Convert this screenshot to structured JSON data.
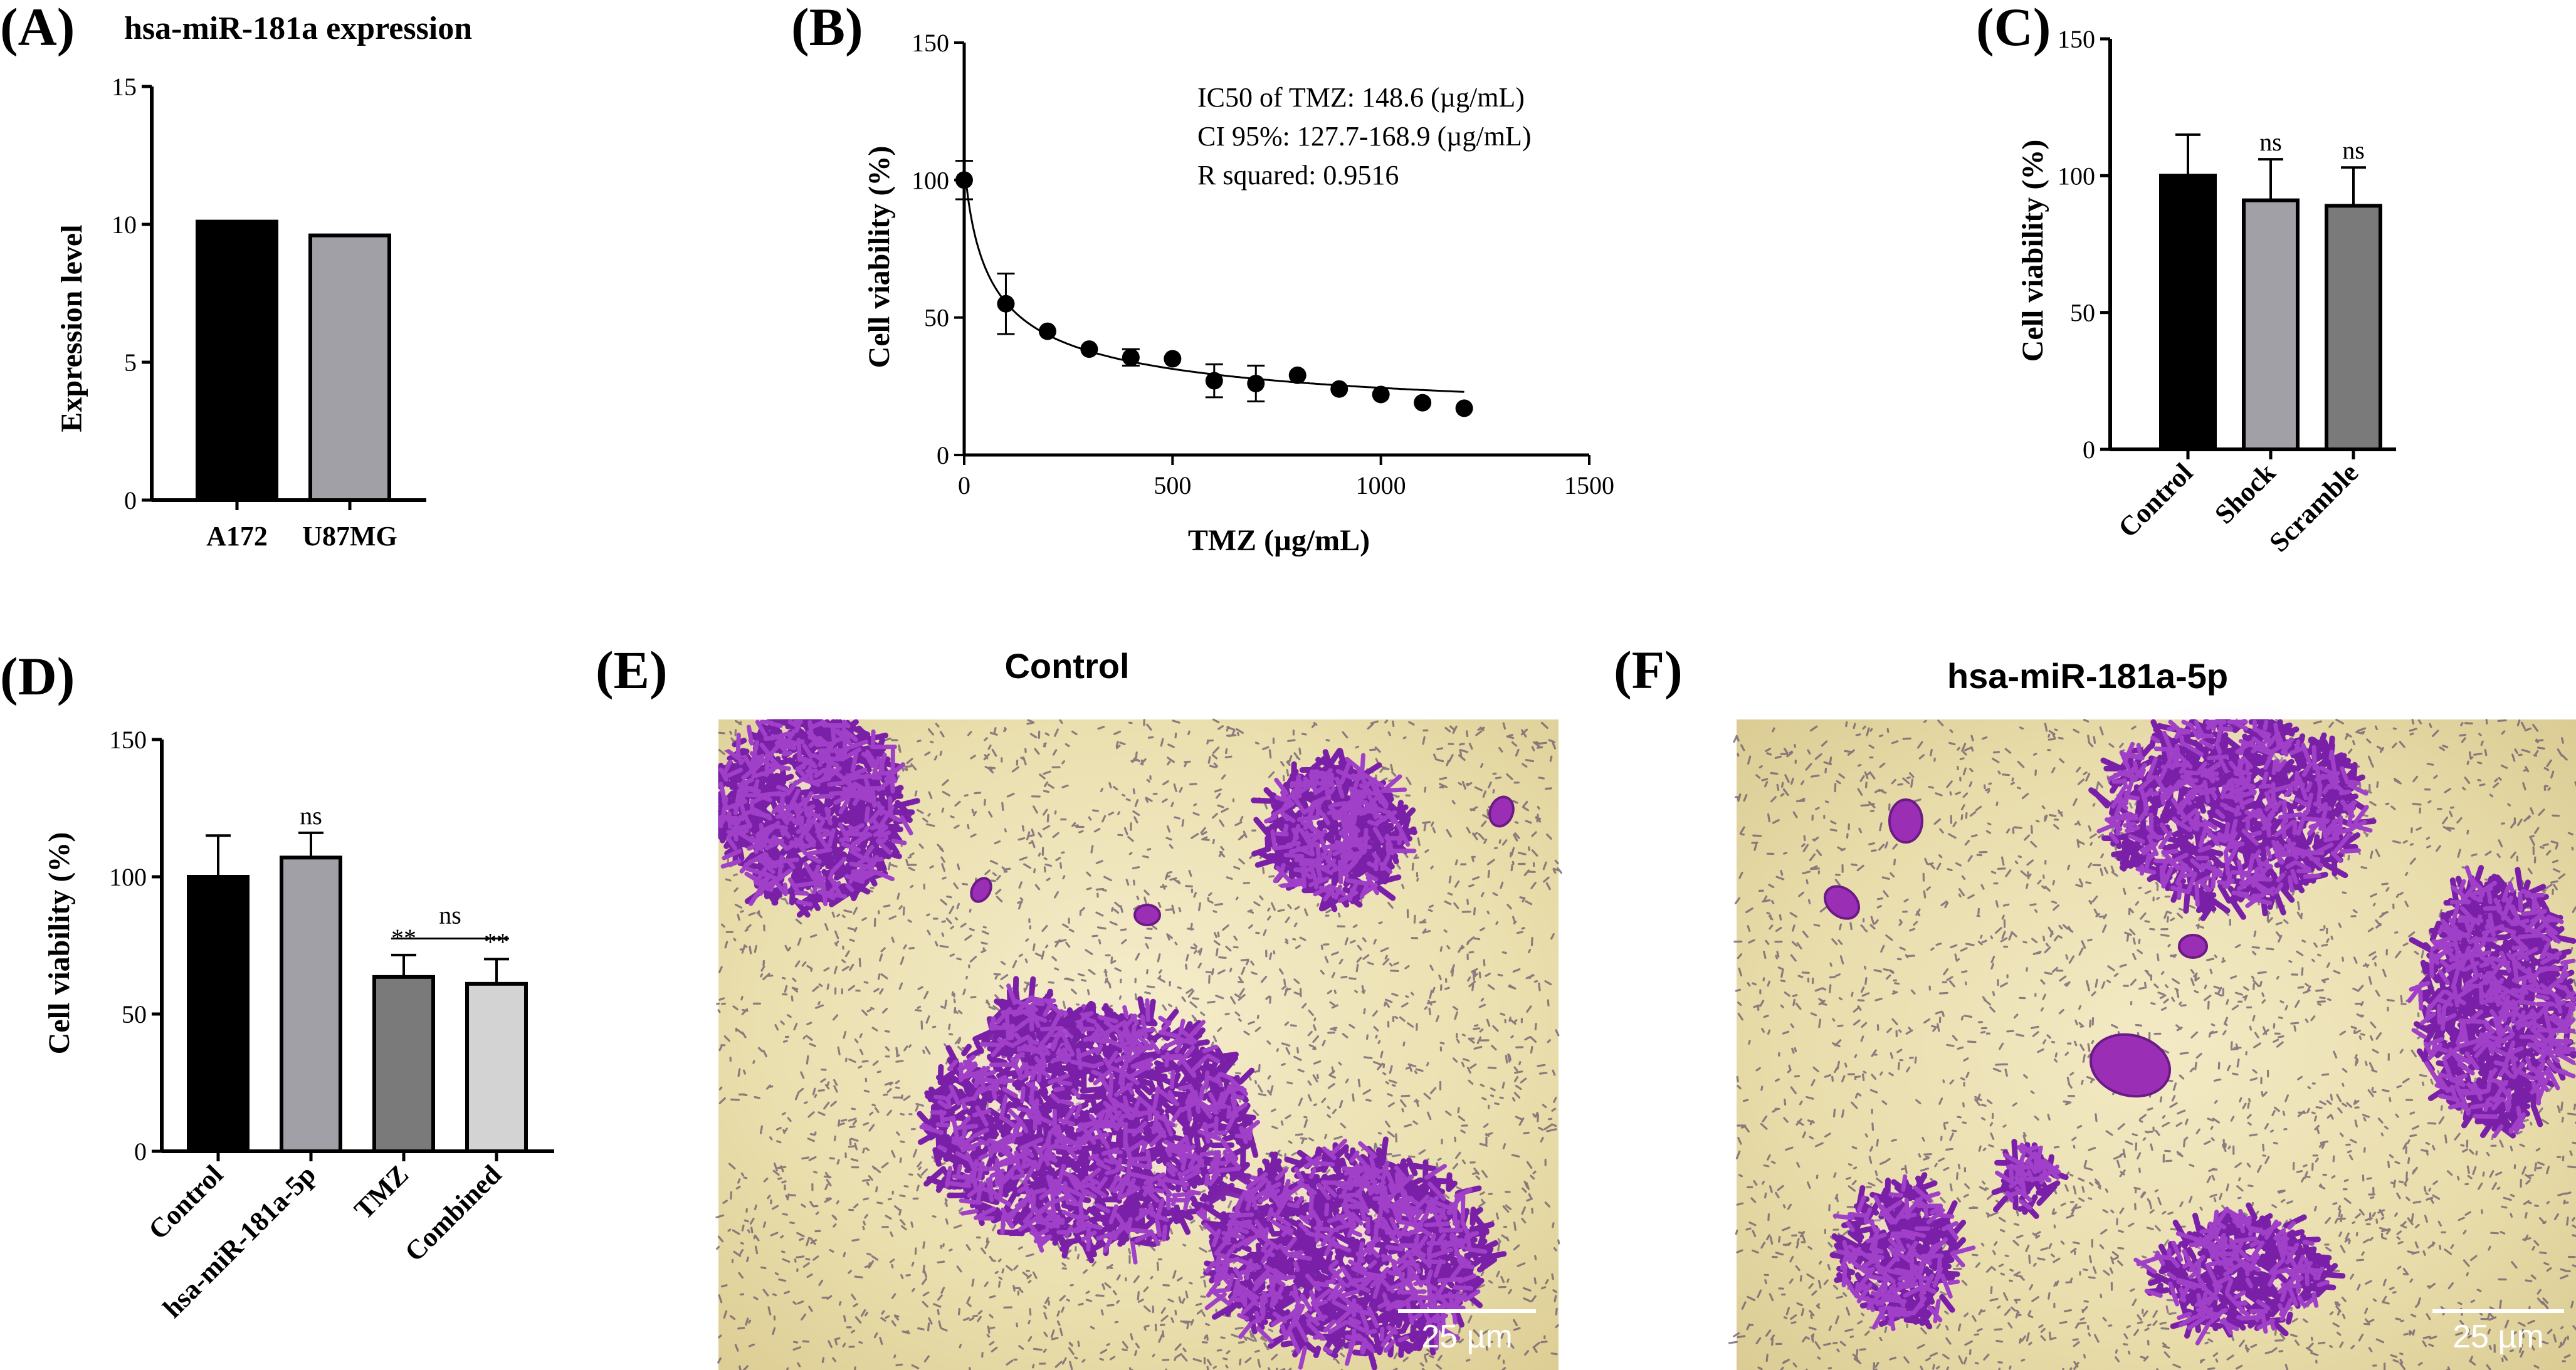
{
  "chart_data": [
    {
      "id": "A",
      "type": "bar",
      "panel_label": "(A)",
      "title": "hsa-miR-181a expression",
      "xlabel": "",
      "ylabel": "Expression level",
      "ylim": [
        0,
        15
      ],
      "yticks": [
        0,
        5,
        10,
        15
      ],
      "categories": [
        "A172",
        "U87MG"
      ],
      "values": [
        10.1,
        9.6
      ],
      "colors": [
        "#000000",
        "#a0a0a6"
      ]
    },
    {
      "id": "B",
      "type": "scatter",
      "panel_label": "(B)",
      "xlabel": "TMZ (µg/mL)",
      "ylabel": "Cell viability (%)",
      "xlim": [
        0,
        1500
      ],
      "ylim": [
        0,
        150
      ],
      "xticks": [
        0,
        500,
        1000,
        1500
      ],
      "yticks": [
        0,
        50,
        100,
        150
      ],
      "x": [
        0,
        100,
        200,
        300,
        400,
        500,
        600,
        700,
        800,
        900,
        1000,
        1100,
        1200
      ],
      "y": [
        100,
        55,
        45,
        38.5,
        35.5,
        35,
        27,
        26,
        29,
        24,
        22,
        19,
        17
      ],
      "error": [
        7,
        11,
        0,
        0,
        3,
        0,
        6,
        6.5,
        0,
        0,
        0,
        0,
        0
      ],
      "fit_curve": true,
      "annotations": [
        "IC50 of TMZ: 148.6 (µg/mL)",
        "CI 95%: 127.7-168.9 (µg/mL)",
        "R squared: 0.9516"
      ]
    },
    {
      "id": "C",
      "type": "bar",
      "panel_label": "(C)",
      "xlabel": "",
      "ylabel": "Cell viability (%)",
      "ylim": [
        0,
        150
      ],
      "yticks": [
        0,
        50,
        100,
        150
      ],
      "categories": [
        "Control",
        "Shock",
        "Scramble"
      ],
      "values": [
        100,
        91,
        89
      ],
      "error": [
        15,
        15,
        14
      ],
      "significance": [
        "",
        "ns",
        "ns"
      ],
      "colors": [
        "#000000",
        "#a0a0a6",
        "#7a7a7a"
      ]
    },
    {
      "id": "D",
      "type": "bar",
      "panel_label": "(D)",
      "xlabel": "",
      "ylabel": "Cell viability (%)",
      "ylim": [
        0,
        150
      ],
      "yticks": [
        0,
        50,
        100,
        150
      ],
      "categories": [
        "Control",
        "hsa-miR-181a-5p",
        "TMZ",
        "Combined"
      ],
      "values": [
        100,
        107,
        63.5,
        61
      ],
      "error": [
        15,
        9,
        8,
        9
      ],
      "significance": [
        "",
        "ns",
        "**",
        "**"
      ],
      "bracket_label": "ns",
      "colors": [
        "#000000",
        "#a0a0a6",
        "#7a7a7a",
        "#d3d3d3"
      ]
    }
  ],
  "images": [
    {
      "panel_label": "(E)",
      "title": "Control",
      "scale_bar": "25 µm"
    },
    {
      "panel_label": "(F)",
      "title": "hsa-miR-181a-5p",
      "scale_bar": "25 µm"
    }
  ]
}
